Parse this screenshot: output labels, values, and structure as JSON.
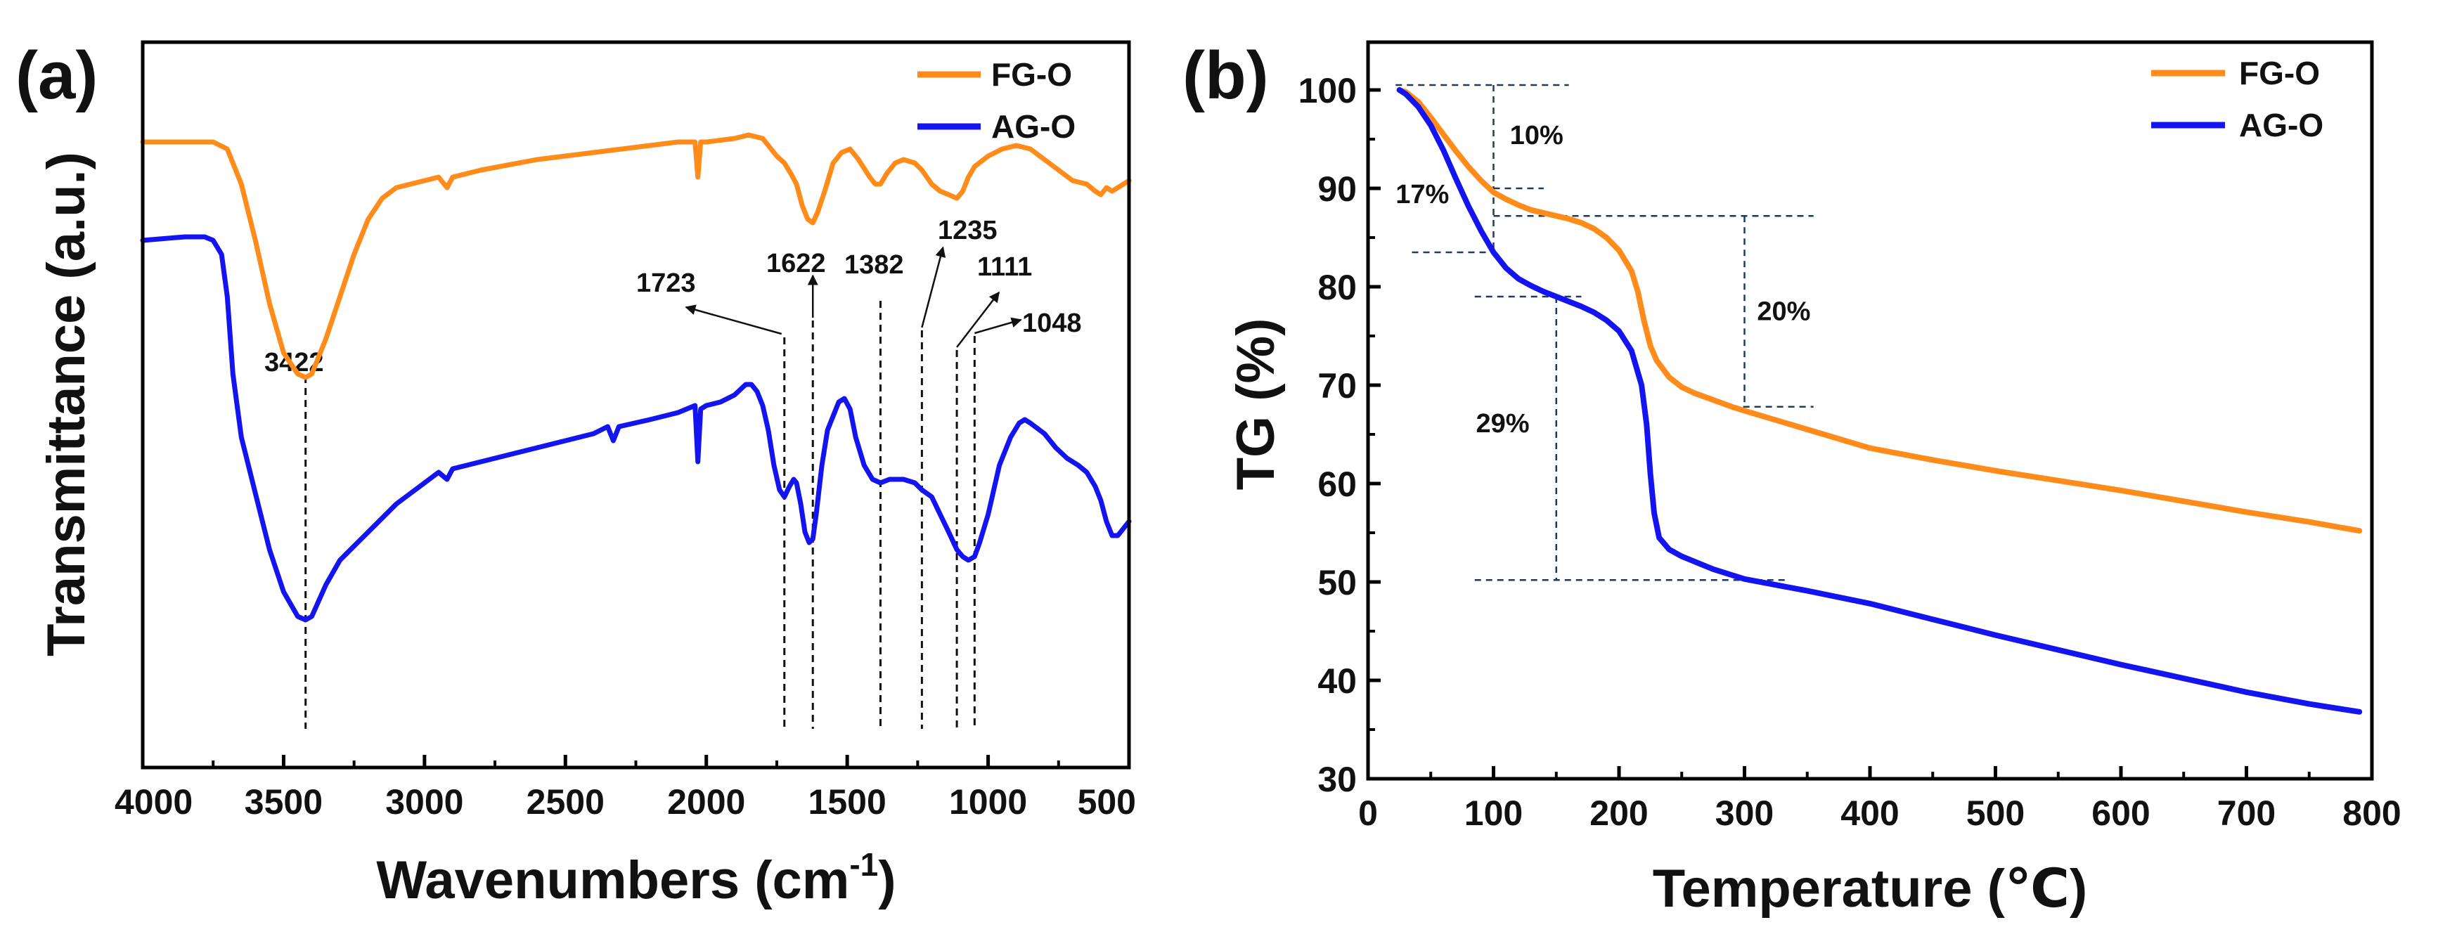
{
  "colors": {
    "fg": "#FF8C1A",
    "ag": "#1414F0",
    "guide": "#1F3A5F",
    "axis": "#000000"
  },
  "panel_a": {
    "label": "(a)",
    "xlabel_main": "Wavenumbers (cm",
    "xlabel_sup": "-1",
    "xlabel_end": ")",
    "ylabel": "Transmittance (a.u.)"
  },
  "panel_b": {
    "label": "(b)",
    "xlabel": "Temperature (℃)",
    "ylabel": "TG (%)"
  },
  "legend": {
    "fg": "FG-O",
    "ag": "AG-O"
  },
  "chart_data": [
    {
      "type": "line",
      "title": "(a)",
      "xlabel": "Wavenumbers (cm-1)",
      "ylabel": "Transmittance (a.u.)",
      "xlim": [
        4000,
        500
      ],
      "ylim": [
        0,
        100
      ],
      "x_ticks": [
        4000,
        3500,
        3000,
        2500,
        2000,
        1500,
        1000,
        500
      ],
      "y_ticks": [],
      "series": [
        {
          "name": "FG-O",
          "color": "#FF8C1A",
          "points": [
            [
              4000,
              66
            ],
            [
              3850,
              66
            ],
            [
              3750,
              66
            ],
            [
              3700,
              65
            ],
            [
              3650,
              60
            ],
            [
              3600,
              52
            ],
            [
              3550,
              43
            ],
            [
              3500,
              36
            ],
            [
              3450,
              33
            ],
            [
              3422,
              32.5
            ],
            [
              3400,
              33
            ],
            [
              3350,
              38
            ],
            [
              3300,
              44
            ],
            [
              3250,
              50
            ],
            [
              3200,
              55
            ],
            [
              3150,
              58
            ],
            [
              3100,
              59.5
            ],
            [
              3000,
              60.5
            ],
            [
              2950,
              61
            ],
            [
              2920,
              59.5
            ],
            [
              2900,
              61
            ],
            [
              2800,
              62
            ],
            [
              2600,
              63.5
            ],
            [
              2400,
              64.5
            ],
            [
              2200,
              65.5
            ],
            [
              2100,
              66
            ],
            [
              2040,
              66
            ],
            [
              2030,
              61
            ],
            [
              2020,
              66
            ],
            [
              2000,
              66
            ],
            [
              1900,
              66.5
            ],
            [
              1850,
              67
            ],
            [
              1800,
              66.5
            ],
            [
              1750,
              64
            ],
            [
              1723,
              63
            ],
            [
              1700,
              61.5
            ],
            [
              1680,
              60
            ],
            [
              1660,
              57
            ],
            [
              1640,
              55
            ],
            [
              1622,
              54.5
            ],
            [
              1605,
              56
            ],
            [
              1580,
              59
            ],
            [
              1550,
              63
            ],
            [
              1520,
              64.5
            ],
            [
              1490,
              65
            ],
            [
              1460,
              63.5
            ],
            [
              1420,
              61
            ],
            [
              1400,
              60
            ],
            [
              1382,
              60
            ],
            [
              1360,
              61.5
            ],
            [
              1330,
              63
            ],
            [
              1300,
              63.5
            ],
            [
              1260,
              63
            ],
            [
              1235,
              62
            ],
            [
              1200,
              60
            ],
            [
              1170,
              59
            ],
            [
              1140,
              58.5
            ],
            [
              1111,
              58
            ],
            [
              1090,
              59
            ],
            [
              1070,
              61
            ],
            [
              1048,
              62.5
            ],
            [
              1000,
              64
            ],
            [
              950,
              65
            ],
            [
              900,
              65.5
            ],
            [
              850,
              65
            ],
            [
              800,
              63.5
            ],
            [
              750,
              62
            ],
            [
              700,
              60.5
            ],
            [
              650,
              60
            ],
            [
              620,
              59
            ],
            [
              600,
              58.5
            ],
            [
              580,
              59.5
            ],
            [
              560,
              59
            ],
            [
              540,
              59.5
            ],
            [
              520,
              60
            ],
            [
              500,
              60.5
            ]
          ]
        },
        {
          "name": "AG-O",
          "color": "#1414F0",
          "points": [
            [
              4000,
              52
            ],
            [
              3850,
              52.5
            ],
            [
              3780,
              52.5
            ],
            [
              3750,
              52
            ],
            [
              3720,
              50
            ],
            [
              3700,
              44
            ],
            [
              3680,
              33
            ],
            [
              3650,
              24
            ],
            [
              3600,
              16
            ],
            [
              3550,
              8
            ],
            [
              3500,
              2
            ],
            [
              3450,
              -1.5
            ],
            [
              3422,
              -2
            ],
            [
              3400,
              -1.5
            ],
            [
              3350,
              3
            ],
            [
              3300,
              6.5
            ],
            [
              3250,
              8.5
            ],
            [
              3200,
              10.5
            ],
            [
              3100,
              14.5
            ],
            [
              3000,
              17.5
            ],
            [
              2950,
              19
            ],
            [
              2920,
              18
            ],
            [
              2900,
              19.5
            ],
            [
              2800,
              20.5
            ],
            [
              2600,
              22.5
            ],
            [
              2400,
              24.5
            ],
            [
              2350,
              25.5
            ],
            [
              2330,
              23.5
            ],
            [
              2310,
              25.5
            ],
            [
              2200,
              26.5
            ],
            [
              2100,
              27.5
            ],
            [
              2040,
              28.5
            ],
            [
              2030,
              20.5
            ],
            [
              2020,
              28
            ],
            [
              2000,
              28.5
            ],
            [
              1950,
              29
            ],
            [
              1900,
              30
            ],
            [
              1860,
              31.5
            ],
            [
              1840,
              31.5
            ],
            [
              1820,
              30.5
            ],
            [
              1800,
              28.5
            ],
            [
              1780,
              25
            ],
            [
              1760,
              20
            ],
            [
              1740,
              16.5
            ],
            [
              1723,
              15.5
            ],
            [
              1705,
              17
            ],
            [
              1690,
              18
            ],
            [
              1680,
              17.5
            ],
            [
              1665,
              14.5
            ],
            [
              1650,
              10.5
            ],
            [
              1635,
              9
            ],
            [
              1622,
              9.5
            ],
            [
              1610,
              13
            ],
            [
              1590,
              20
            ],
            [
              1570,
              25
            ],
            [
              1550,
              27
            ],
            [
              1530,
              29
            ],
            [
              1510,
              29.5
            ],
            [
              1490,
              28
            ],
            [
              1470,
              24
            ],
            [
              1440,
              20
            ],
            [
              1410,
              18
            ],
            [
              1382,
              17.5
            ],
            [
              1350,
              18
            ],
            [
              1300,
              18
            ],
            [
              1260,
              17.5
            ],
            [
              1235,
              16.5
            ],
            [
              1200,
              15.5
            ],
            [
              1170,
              13
            ],
            [
              1140,
              10.5
            ],
            [
              1111,
              8
            ],
            [
              1090,
              7
            ],
            [
              1070,
              6.5
            ],
            [
              1048,
              7
            ],
            [
              1030,
              9
            ],
            [
              1000,
              13
            ],
            [
              960,
              20
            ],
            [
              920,
              24
            ],
            [
              890,
              26
            ],
            [
              870,
              26.5
            ],
            [
              850,
              26
            ],
            [
              800,
              24.5
            ],
            [
              760,
              22.5
            ],
            [
              720,
              21
            ],
            [
              680,
              20
            ],
            [
              650,
              19
            ],
            [
              620,
              17
            ],
            [
              600,
              15
            ],
            [
              580,
              12
            ],
            [
              560,
              10
            ],
            [
              540,
              10
            ],
            [
              520,
              11
            ],
            [
              500,
              12
            ]
          ]
        }
      ],
      "annotations": [
        {
          "x": 3422,
          "label": "3422"
        },
        {
          "x": 1723,
          "label": "1723"
        },
        {
          "x": 1622,
          "label": "1622"
        },
        {
          "x": 1382,
          "label": "1382"
        },
        {
          "x": 1235,
          "label": "1235"
        },
        {
          "x": 1111,
          "label": "1111"
        },
        {
          "x": 1048,
          "label": "1048"
        }
      ],
      "legend_position": "top-right"
    },
    {
      "type": "line",
      "title": "(b)",
      "xlabel": "Temperature (℃)",
      "ylabel": "TG (%)",
      "xlim": [
        0,
        800
      ],
      "ylim": [
        30,
        105
      ],
      "x_ticks": [
        0,
        100,
        200,
        300,
        400,
        500,
        600,
        700,
        800
      ],
      "y_ticks": [
        30,
        40,
        50,
        60,
        70,
        80,
        90,
        100
      ],
      "series": [
        {
          "name": "FG-O",
          "color": "#FF8C1A",
          "points": [
            [
              25,
              100
            ],
            [
              30,
              99.8
            ],
            [
              40,
              98.8
            ],
            [
              50,
              97.2
            ],
            [
              60,
              95.5
            ],
            [
              70,
              93.8
            ],
            [
              80,
              92.2
            ],
            [
              90,
              90.8
            ],
            [
              100,
              89.6
            ],
            [
              110,
              88.9
            ],
            [
              120,
              88.3
            ],
            [
              130,
              87.8
            ],
            [
              140,
              87.5
            ],
            [
              150,
              87.2
            ],
            [
              160,
              86.9
            ],
            [
              170,
              86.5
            ],
            [
              180,
              85.9
            ],
            [
              190,
              85.0
            ],
            [
              200,
              83.7
            ],
            [
              210,
              81.6
            ],
            [
              215,
              79.5
            ],
            [
              220,
              76.5
            ],
            [
              225,
              74.0
            ],
            [
              230,
              72.5
            ],
            [
              240,
              70.8
            ],
            [
              250,
              69.8
            ],
            [
              260,
              69.2
            ],
            [
              275,
              68.5
            ],
            [
              290,
              67.8
            ],
            [
              300,
              67.4
            ],
            [
              350,
              65.5
            ],
            [
              400,
              63.6
            ],
            [
              450,
              62.4
            ],
            [
              500,
              61.3
            ],
            [
              550,
              60.3
            ],
            [
              600,
              59.3
            ],
            [
              650,
              58.2
            ],
            [
              700,
              57.1
            ],
            [
              750,
              56.1
            ],
            [
              790,
              55.2
            ]
          ]
        },
        {
          "name": "AG-O",
          "color": "#1414F0",
          "points": [
            [
              25,
              100
            ],
            [
              30,
              99.6
            ],
            [
              40,
              98.3
            ],
            [
              50,
              96.4
            ],
            [
              60,
              93.9
            ],
            [
              70,
              91.0
            ],
            [
              80,
              88.2
            ],
            [
              90,
              85.7
            ],
            [
              100,
              83.5
            ],
            [
              110,
              81.9
            ],
            [
              120,
              80.8
            ],
            [
              130,
              80.1
            ],
            [
              140,
              79.5
            ],
            [
              150,
              79.0
            ],
            [
              160,
              78.5
            ],
            [
              170,
              78.0
            ],
            [
              180,
              77.4
            ],
            [
              190,
              76.6
            ],
            [
              200,
              75.5
            ],
            [
              210,
              73.5
            ],
            [
              218,
              70.0
            ],
            [
              222,
              66.0
            ],
            [
              225,
              61.0
            ],
            [
              228,
              57.0
            ],
            [
              232,
              54.5
            ],
            [
              240,
              53.3
            ],
            [
              250,
              52.6
            ],
            [
              275,
              51.3
            ],
            [
              300,
              50.3
            ],
            [
              350,
              49.1
            ],
            [
              400,
              47.8
            ],
            [
              450,
              46.2
            ],
            [
              500,
              44.6
            ],
            [
              550,
              43.1
            ],
            [
              600,
              41.6
            ],
            [
              650,
              40.2
            ],
            [
              700,
              38.8
            ],
            [
              750,
              37.6
            ],
            [
              790,
              36.8
            ]
          ]
        }
      ],
      "annotations": [
        {
          "label": "10%",
          "series": "FG-O",
          "from": 100,
          "to": 90
        },
        {
          "label": "17%",
          "series": "AG-O",
          "from": 100,
          "to": 83
        },
        {
          "label": "20%",
          "series": "FG-O",
          "from": 87,
          "to": 67.5
        },
        {
          "label": "29%",
          "series": "AG-O",
          "from": 79,
          "to": 50
        }
      ],
      "legend_position": "top-right"
    }
  ]
}
